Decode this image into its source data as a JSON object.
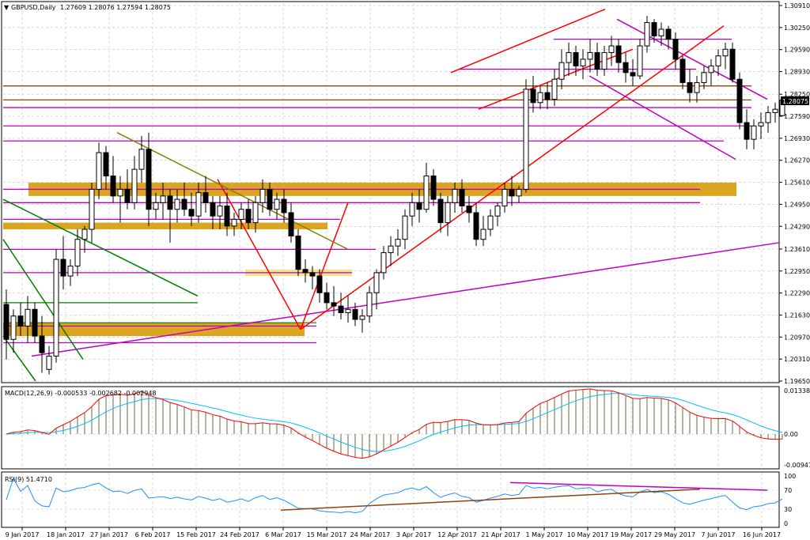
{
  "window": {
    "symbol_label": "GBPUSD,Daily",
    "ohlc_label": "1.27609 1.28076 1.27594 1.28075",
    "current_price_label": "1.28075"
  },
  "colors": {
    "background": "#ffffff",
    "grid": "#c0c0c0",
    "candle": "#000000",
    "price_tag_bg": "#000000",
    "zone_fill": "#daa520",
    "zone_light": "#f0e68c",
    "magenta_line": "#c000c0",
    "horizontal_brown": "#8b4513",
    "trend_red": "#ff0000",
    "trend_green": "#008000",
    "trend_olive": "#808000",
    "macd_line": "#ff0000",
    "signal_line": "#00bfff",
    "macd_hist": "#6b6b3a",
    "rsi_line": "#1e90ff",
    "rsi_trend": "#8b4513"
  },
  "price_axis": {
    "ticks": [
      "1.30910",
      "1.30250",
      "1.29590",
      "1.28930",
      "1.28250",
      "1.27590",
      "1.26930",
      "1.26270",
      "1.25610",
      "1.24950",
      "1.24290",
      "1.23610",
      "1.22950",
      "1.22290",
      "1.21630",
      "1.20970",
      "1.20310",
      "1.19650"
    ]
  },
  "time_axis": {
    "ticks": [
      "9 Jan 2017",
      "18 Jan 2017",
      "27 Jan 2017",
      "6 Feb 2017",
      "15 Feb 2017",
      "24 Feb 2017",
      "6 Mar 2017",
      "15 Mar 2017",
      "24 Mar 2017",
      "3 Apr 2017",
      "12 Apr 2017",
      "21 Apr 2017",
      "1 May 2017",
      "10 May 2017",
      "19 May 2017",
      "29 May 2017",
      "7 Jun 2017",
      "16 Jun 2017"
    ]
  },
  "macd_panel": {
    "label": "MACD(12,26,9) -0.000533 -0.002682 -0.002948",
    "ticks": [
      "0.013382",
      "0.00",
      "-0.009472"
    ]
  },
  "rsi_panel": {
    "label": "RSI(9) 51.4710",
    "ticks": [
      "100",
      "70",
      "30",
      "0"
    ]
  },
  "chart_data": {
    "type": "candlestick",
    "title": "GBPUSD,Daily",
    "ylim": [
      1.1965,
      1.3091
    ],
    "x_range": [
      "9 Jan 2017",
      "16 Jun 2017"
    ],
    "grid": true,
    "last_price": 1.28075,
    "ohlc": [
      [
        1.2195,
        1.224,
        1.203,
        1.209
      ],
      [
        1.209,
        1.218,
        1.205,
        1.216
      ],
      [
        1.216,
        1.22,
        1.21,
        1.213
      ],
      [
        1.213,
        1.222,
        1.208,
        1.218
      ],
      [
        1.218,
        1.22,
        1.208,
        1.21
      ],
      [
        1.21,
        1.216,
        1.199,
        1.205
      ],
      [
        1.2,
        1.207,
        1.1985,
        1.204
      ],
      [
        1.204,
        1.236,
        1.202,
        1.233
      ],
      [
        1.233,
        1.24,
        1.224,
        1.228
      ],
      [
        1.228,
        1.233,
        1.225,
        1.231
      ],
      [
        1.231,
        1.242,
        1.228,
        1.239
      ],
      [
        1.239,
        1.243,
        1.235,
        1.242
      ],
      [
        1.242,
        1.256,
        1.238,
        1.254
      ],
      [
        1.254,
        1.268,
        1.251,
        1.265
      ],
      [
        1.265,
        1.267,
        1.254,
        1.258
      ],
      [
        1.258,
        1.264,
        1.25,
        1.252
      ],
      [
        1.252,
        1.258,
        1.244,
        1.254
      ],
      [
        1.254,
        1.26,
        1.248,
        1.25
      ],
      [
        1.25,
        1.264,
        1.248,
        1.26
      ],
      [
        1.26,
        1.27,
        1.256,
        1.266
      ],
      [
        1.266,
        1.271,
        1.243,
        1.248
      ],
      [
        1.248,
        1.253,
        1.245,
        1.25
      ],
      [
        1.25,
        1.256,
        1.245,
        1.252
      ],
      [
        1.252,
        1.254,
        1.238,
        1.248
      ],
      [
        1.248,
        1.254,
        1.244,
        1.251
      ],
      [
        1.251,
        1.256,
        1.246,
        1.248
      ],
      [
        1.248,
        1.253,
        1.243,
        1.246
      ],
      [
        1.246,
        1.256,
        1.244,
        1.253
      ],
      [
        1.253,
        1.258,
        1.247,
        1.25
      ],
      [
        1.25,
        1.252,
        1.242,
        1.246
      ],
      [
        1.246,
        1.252,
        1.242,
        1.249
      ],
      [
        1.249,
        1.253,
        1.24,
        1.243
      ],
      [
        1.243,
        1.247,
        1.24,
        1.245
      ],
      [
        1.245,
        1.25,
        1.242,
        1.248
      ],
      [
        1.248,
        1.251,
        1.242,
        1.244
      ],
      [
        1.244,
        1.252,
        1.241,
        1.25
      ],
      [
        1.25,
        1.257,
        1.247,
        1.254
      ],
      [
        1.254,
        1.256,
        1.246,
        1.248
      ],
      [
        1.248,
        1.253,
        1.245,
        1.251
      ],
      [
        1.251,
        1.254,
        1.244,
        1.247
      ],
      [
        1.247,
        1.25,
        1.238,
        1.24
      ],
      [
        1.24,
        1.242,
        1.228,
        1.23
      ],
      [
        1.23,
        1.233,
        1.226,
        1.229
      ],
      [
        1.229,
        1.231,
        1.224,
        1.228
      ],
      [
        1.228,
        1.23,
        1.22,
        1.223
      ],
      [
        1.223,
        1.226,
        1.218,
        1.22
      ],
      [
        1.22,
        1.225,
        1.216,
        1.219
      ],
      [
        1.219,
        1.223,
        1.215,
        1.217
      ],
      [
        1.217,
        1.222,
        1.214,
        1.218
      ],
      [
        1.218,
        1.22,
        1.213,
        1.215
      ],
      [
        1.215,
        1.218,
        1.211,
        1.216
      ],
      [
        1.216,
        1.225,
        1.214,
        1.223
      ],
      [
        1.223,
        1.23,
        1.218,
        1.229
      ],
      [
        1.229,
        1.237,
        1.227,
        1.235
      ],
      [
        1.235,
        1.24,
        1.231,
        1.237
      ],
      [
        1.237,
        1.242,
        1.234,
        1.239
      ],
      [
        1.239,
        1.248,
        1.236,
        1.246
      ],
      [
        1.246,
        1.253,
        1.243,
        1.25
      ],
      [
        1.25,
        1.254,
        1.244,
        1.248
      ],
      [
        1.248,
        1.262,
        1.247,
        1.258
      ],
      [
        1.258,
        1.26,
        1.249,
        1.251
      ],
      [
        1.251,
        1.253,
        1.241,
        1.244
      ],
      [
        1.244,
        1.252,
        1.24,
        1.25
      ],
      [
        1.25,
        1.256,
        1.247,
        1.254
      ],
      [
        1.254,
        1.257,
        1.247,
        1.249
      ],
      [
        1.249,
        1.252,
        1.244,
        1.247
      ],
      [
        1.247,
        1.25,
        1.237,
        1.239
      ],
      [
        1.239,
        1.246,
        1.237,
        1.242
      ],
      [
        1.242,
        1.248,
        1.24,
        1.246
      ],
      [
        1.246,
        1.25,
        1.243,
        1.249
      ],
      [
        1.249,
        1.256,
        1.247,
        1.254
      ],
      [
        1.254,
        1.258,
        1.249,
        1.252
      ],
      [
        1.252,
        1.255,
        1.25,
        1.254
      ],
      [
        1.254,
        1.287,
        1.253,
        1.284
      ],
      [
        1.284,
        1.288,
        1.277,
        1.28
      ],
      [
        1.28,
        1.285,
        1.278,
        1.283
      ],
      [
        1.283,
        1.286,
        1.278,
        1.281
      ],
      [
        1.281,
        1.29,
        1.279,
        1.287
      ],
      [
        1.287,
        1.296,
        1.284,
        1.292
      ],
      [
        1.292,
        1.298,
        1.288,
        1.295
      ],
      [
        1.295,
        1.297,
        1.288,
        1.291
      ],
      [
        1.291,
        1.296,
        1.287,
        1.293
      ],
      [
        1.293,
        1.299,
        1.289,
        1.295
      ],
      [
        1.295,
        1.298,
        1.288,
        1.29
      ],
      [
        1.29,
        1.297,
        1.288,
        1.295
      ],
      [
        1.295,
        1.3,
        1.291,
        1.297
      ],
      [
        1.297,
        1.299,
        1.289,
        1.292
      ],
      [
        1.292,
        1.295,
        1.286,
        1.289
      ],
      [
        1.289,
        1.293,
        1.285,
        1.288
      ],
      [
        1.288,
        1.299,
        1.287,
        1.297
      ],
      [
        1.297,
        1.306,
        1.295,
        1.304
      ],
      [
        1.304,
        1.305,
        1.298,
        1.3
      ],
      [
        1.3,
        1.304,
        1.297,
        1.302
      ],
      [
        1.302,
        1.303,
        1.296,
        1.299
      ],
      [
        1.299,
        1.301,
        1.29,
        1.293
      ],
      [
        1.293,
        1.294,
        1.284,
        1.286
      ],
      [
        1.286,
        1.29,
        1.28,
        1.283
      ],
      [
        1.283,
        1.288,
        1.28,
        1.286
      ],
      [
        1.286,
        1.291,
        1.284,
        1.289
      ],
      [
        1.289,
        1.293,
        1.285,
        1.291
      ],
      [
        1.291,
        1.296,
        1.288,
        1.294
      ],
      [
        1.294,
        1.298,
        1.29,
        1.296
      ],
      [
        1.296,
        1.298,
        1.286,
        1.287
      ],
      [
        1.287,
        1.289,
        1.272,
        1.274
      ],
      [
        1.274,
        1.278,
        1.266,
        1.269
      ],
      [
        1.269,
        1.275,
        1.266,
        1.273
      ],
      [
        1.273,
        1.277,
        1.269,
        1.274
      ],
      [
        1.274,
        1.279,
        1.271,
        1.277
      ],
      [
        1.277,
        1.28,
        1.274,
        1.278
      ],
      [
        1.2761,
        1.2808,
        1.2759,
        1.2808
      ]
    ],
    "annotations": [
      {
        "type": "zone",
        "label": "support/resistance band",
        "y": [
          1.252,
          1.256
        ]
      },
      {
        "type": "zone",
        "label": "support/resistance band",
        "y": [
          1.242,
          1.244
        ]
      },
      {
        "type": "zone",
        "label": "support/resistance band",
        "y": [
          1.21,
          1.214
        ]
      }
    ],
    "macd": {
      "params": "12,26,9",
      "main": -0.000533,
      "signal": -0.002682,
      "histogram": -0.002948,
      "ylim": [
        -0.009472,
        0.013382
      ]
    },
    "rsi": {
      "period": 9,
      "value": 51.471,
      "levels": [
        30,
        70
      ],
      "ylim": [
        0,
        100
      ]
    }
  }
}
